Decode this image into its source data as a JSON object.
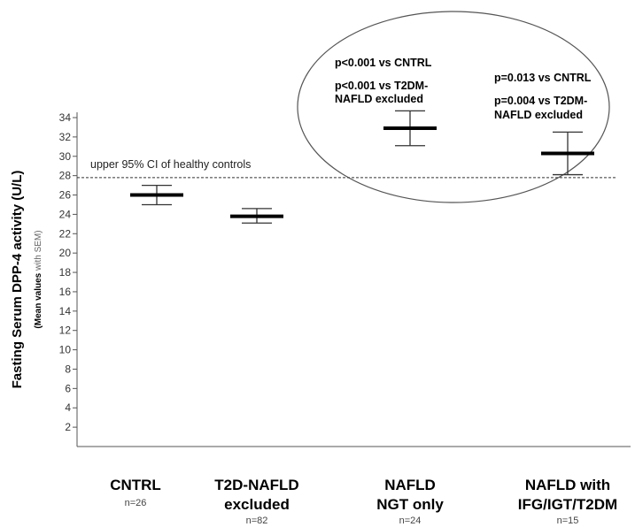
{
  "chart_data": {
    "type": "errorbar",
    "ylabel": "Fasting Serum DPP-4 activity (U/L)",
    "ylabel_sub_bold": "(Mean values ",
    "ylabel_sub_light": "with SEM)",
    "ylim": [
      0,
      34
    ],
    "yticks": [
      2,
      4,
      6,
      8,
      10,
      12,
      14,
      16,
      18,
      20,
      22,
      24,
      26,
      28,
      30,
      32,
      34
    ],
    "categories": [
      {
        "label_lines": [
          "CNTRL"
        ],
        "n": "n=26",
        "mean": 26.0,
        "sem_low": 25.0,
        "sem_high": 27.0
      },
      {
        "label_lines": [
          "T2D-NAFLD",
          "excluded"
        ],
        "n": "n=82",
        "mean": 23.8,
        "sem_low": 23.1,
        "sem_high": 24.6
      },
      {
        "label_lines": [
          "NAFLD",
          "NGT only"
        ],
        "n": "n=24",
        "mean": 32.9,
        "sem_low": 31.1,
        "sem_high": 34.7
      },
      {
        "label_lines": [
          "NAFLD with",
          "IFG/IGT/T2DM"
        ],
        "n": "n=15",
        "mean": 30.3,
        "sem_low": 28.1,
        "sem_high": 32.5
      }
    ],
    "reference_line": {
      "value": 27.8,
      "label": "upper 95% CI of healthy controls",
      "style": "dashed"
    },
    "annotations": [
      {
        "group": "NAFLD NGT only",
        "lines": [
          "p<0.001 vs CNTRL",
          "p<0.001 vs T2DM-",
          "NAFLD excluded"
        ]
      },
      {
        "group": "NAFLD with IFG/IGT/T2DM",
        "lines": [
          "p=0.013 vs CNTRL",
          "p=0.004 vs T2DM-",
          "NAFLD excluded"
        ]
      }
    ],
    "highlight_ellipse": "encloses NAFLD groups and p-values",
    "grid": false,
    "colors": {
      "mean_bar": "#000000",
      "error_bar": "#333333",
      "axis": "#555555",
      "ellipse": "#555555"
    }
  }
}
